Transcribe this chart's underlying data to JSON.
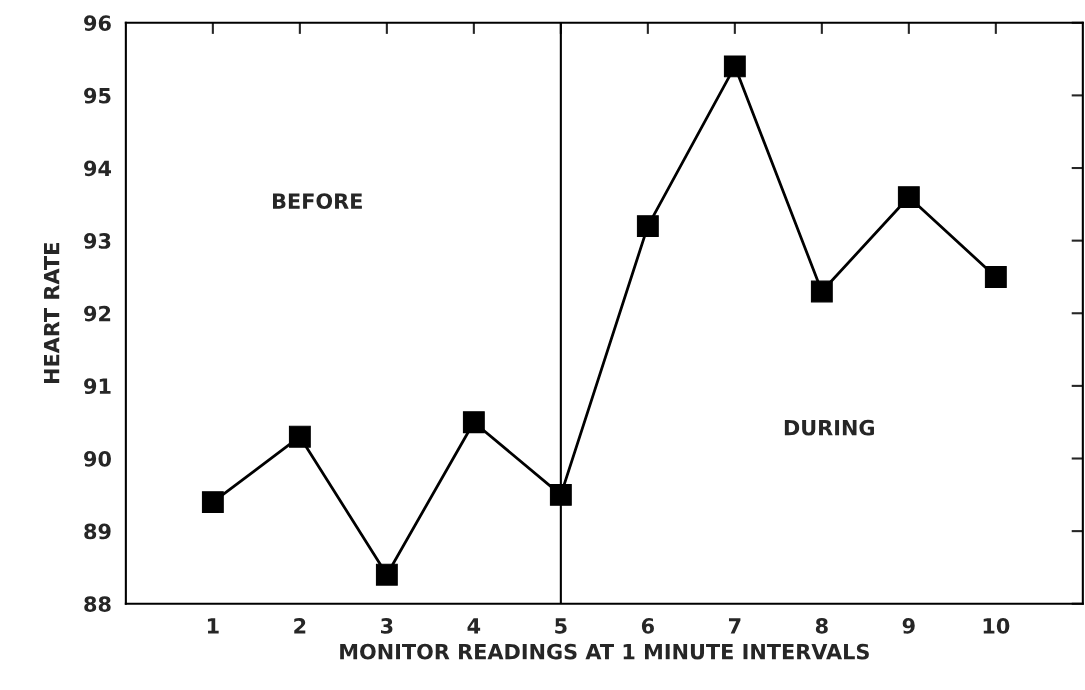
{
  "chart_data": {
    "type": "line",
    "xlabel": "MONITOR READINGS AT 1 MINUTE INTERVALS",
    "ylabel": "HEART RATE",
    "x": [
      1,
      2,
      3,
      4,
      5,
      6,
      7,
      8,
      9,
      10
    ],
    "series": [
      {
        "color": "#000000",
        "values": [
          89.4,
          90.3,
          88.4,
          90.5,
          89.5,
          93.2,
          95.4,
          92.3,
          93.6,
          92.5
        ]
      }
    ],
    "xlim": [
      0,
      11
    ],
    "xticks": [
      1,
      2,
      3,
      4,
      5,
      6,
      7,
      8,
      9,
      10
    ],
    "ylim": [
      88,
      96
    ],
    "yticks": [
      88,
      89,
      90,
      91,
      92,
      93,
      94,
      95,
      96
    ],
    "ref_lines": [
      {
        "axis": "x",
        "value": 5,
        "color": "#000000"
      }
    ],
    "annotations": [
      "BEFORE",
      "DURING"
    ],
    "marker": "square",
    "line_style": "solid",
    "grid": false,
    "legend": false
  }
}
